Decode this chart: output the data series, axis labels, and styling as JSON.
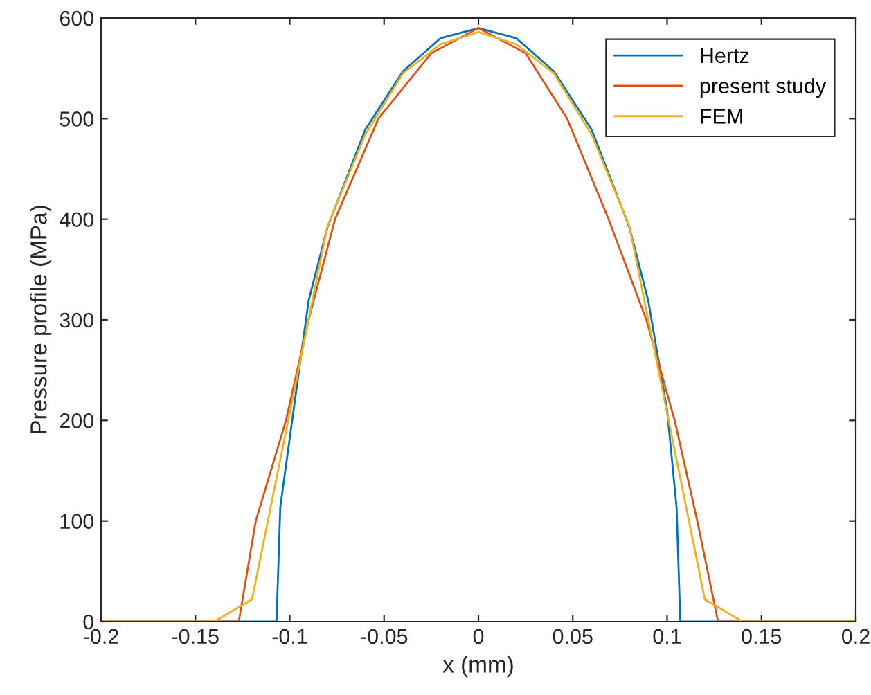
{
  "chart_data": {
    "type": "line",
    "xlabel": "x (mm)",
    "ylabel": "Pressure profile (MPa)",
    "series": [
      {
        "name": "Hertz",
        "color": "#0072bd",
        "x": [
          -0.2,
          -0.107,
          -0.105,
          -0.09,
          -0.08,
          -0.06,
          -0.04,
          -0.02,
          0,
          0.02,
          0.04,
          0.06,
          0.08,
          0.09,
          0.1,
          0.105,
          0.107,
          0.2
        ],
        "values": [
          0,
          0,
          114,
          319,
          392,
          489,
          547,
          580,
          590,
          580,
          547,
          489,
          392,
          319,
          210,
          114,
          0,
          0
        ]
      },
      {
        "name": "present study",
        "color": "#d95319",
        "x": [
          -0.2,
          -0.127,
          -0.118,
          -0.102,
          -0.09,
          -0.076,
          -0.053,
          -0.025,
          0,
          0.025,
          0.047,
          0.069,
          0.089,
          0.104,
          0.116,
          0.127,
          0.2
        ],
        "values": [
          0,
          0,
          100,
          200,
          300,
          400,
          500,
          565,
          590,
          565,
          500,
          400,
          300,
          200,
          100,
          0,
          0
        ]
      },
      {
        "name": "FEM",
        "color": "#edb120",
        "x": [
          -0.2,
          -0.14,
          -0.12,
          -0.08,
          -0.06,
          -0.04,
          -0.02,
          0,
          0.02,
          0.04,
          0.06,
          0.08,
          0.12,
          0.14,
          0.2
        ],
        "values": [
          0,
          0,
          22,
          393,
          484,
          545,
          574,
          586,
          574,
          545,
          484,
          393,
          22,
          0,
          0
        ]
      }
    ],
    "xlim": [
      -0.2,
      0.2
    ],
    "xticks": [
      -0.2,
      -0.15,
      -0.1,
      -0.05,
      0,
      0.05,
      0.1,
      0.15,
      0.2
    ],
    "ylim": [
      0,
      600
    ],
    "yticks": [
      0,
      100,
      200,
      300,
      400,
      500,
      600
    ],
    "legend": "top right",
    "grid": false,
    "line_style": "solid",
    "marker": "none"
  }
}
